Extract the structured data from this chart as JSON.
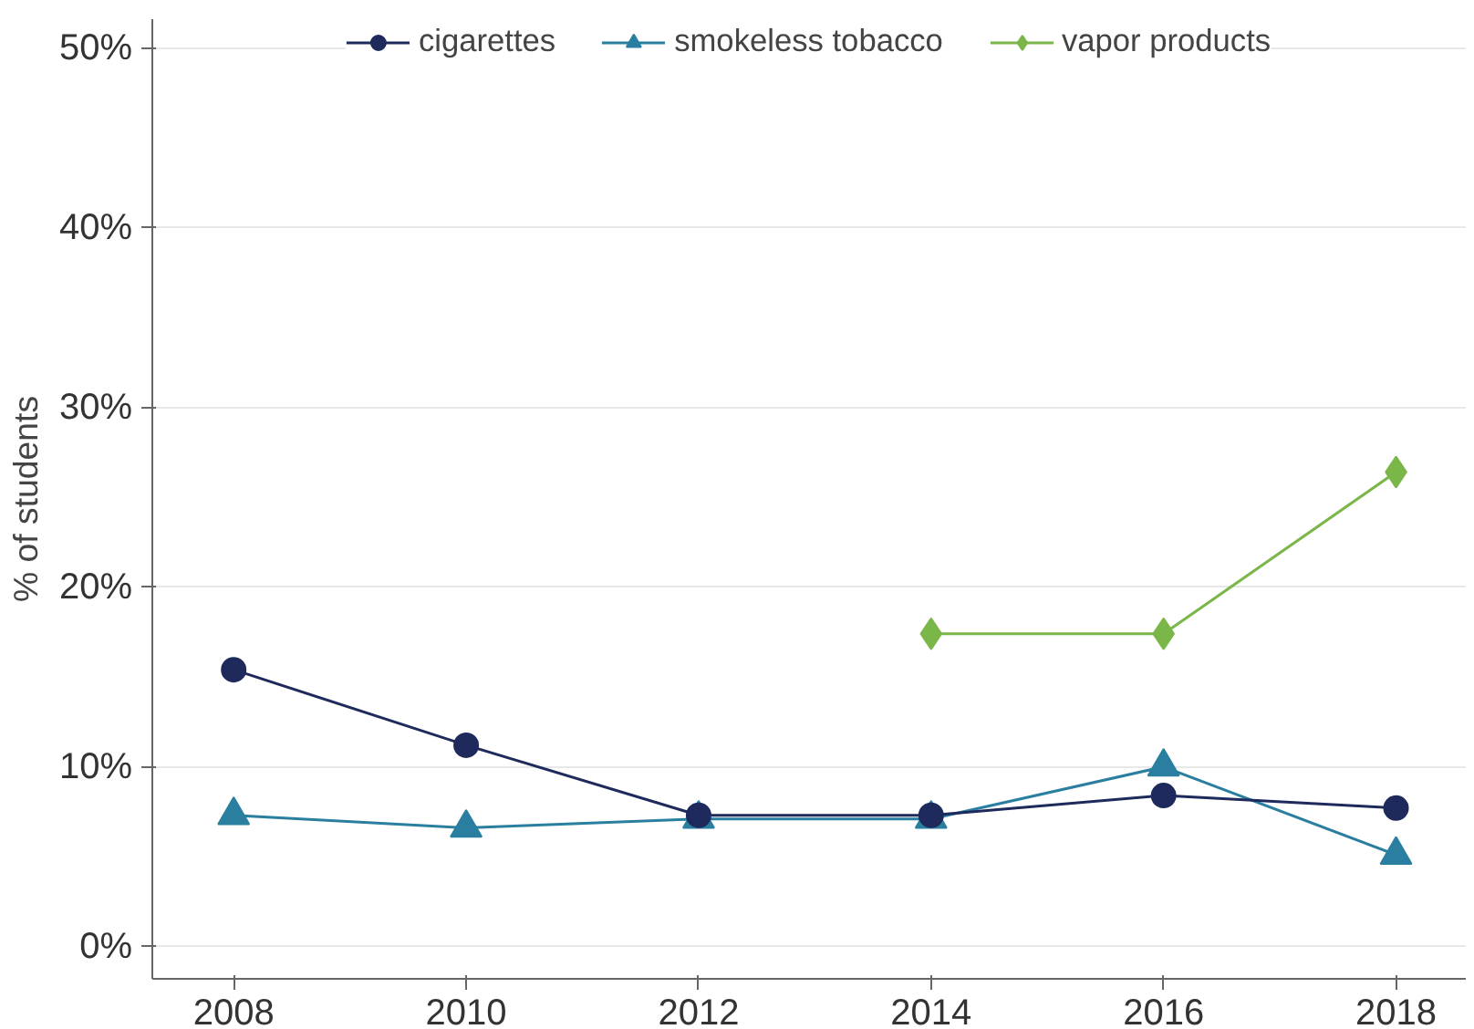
{
  "chart_data": {
    "type": "line",
    "ylabel": "% of students",
    "x": [
      2008,
      2010,
      2012,
      2014,
      2016,
      2018
    ],
    "xlim": [
      2007.3,
      2018.6
    ],
    "xticks": [
      2008,
      2010,
      2012,
      2014,
      2016,
      2018
    ],
    "ylim": [
      -1.8,
      51.6
    ],
    "yticks": [
      {
        "value": 0,
        "label": "0%"
      },
      {
        "value": 10,
        "label": "10%"
      },
      {
        "value": 20,
        "label": "20%"
      },
      {
        "value": 30,
        "label": "30%"
      },
      {
        "value": 40,
        "label": "40%"
      },
      {
        "value": 50,
        "label": "50%"
      }
    ],
    "grid": "y",
    "legend": "top",
    "series": [
      {
        "name": "cigarettes",
        "color": "#1f2a5c",
        "marker": "circle",
        "values": [
          15.4,
          11.2,
          7.3,
          7.3,
          8.4,
          7.7
        ]
      },
      {
        "name": "smokeless tobacco",
        "color": "#2a7fa0",
        "marker": "triangle",
        "values": [
          7.3,
          6.6,
          7.1,
          7.1,
          10.0,
          5.1
        ]
      },
      {
        "name": "vapor products",
        "color": "#7ab648",
        "marker": "diamond",
        "values": [
          null,
          null,
          null,
          17.4,
          17.4,
          26.4
        ]
      }
    ]
  }
}
